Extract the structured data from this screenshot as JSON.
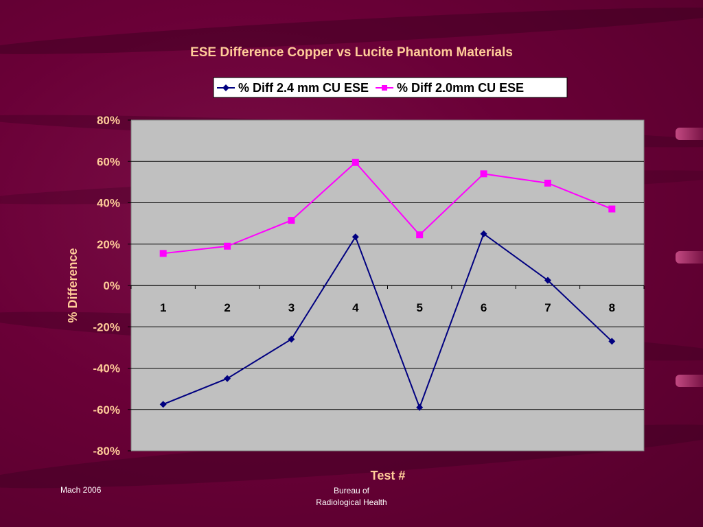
{
  "slide": {
    "footer_left": "Mach 2006",
    "footer_center_line1": "Bureau of",
    "footer_center_line2": "Radiological Health"
  },
  "colors": {
    "title": "#ffcc99",
    "axis_text": "#ffcc99",
    "plot_bg": "#c0c0c0",
    "series1": "#000080",
    "series2": "#ff00ff"
  },
  "chart_data": {
    "type": "line",
    "title": "ESE Difference Copper vs Lucite Phantom Materials",
    "xlabel": "Test #",
    "ylabel": "% Difference",
    "categories": [
      "1",
      "2",
      "3",
      "4",
      "5",
      "6",
      "7",
      "8"
    ],
    "ylim": [
      -80,
      80
    ],
    "yticks": [
      "80%",
      "60%",
      "40%",
      "20%",
      "0%",
      "-20%",
      "-40%",
      "-60%",
      "-80%"
    ],
    "grid": true,
    "legend_position": "top",
    "series": [
      {
        "name": "% Diff  2.4 mm CU ESE",
        "marker": "diamond",
        "color": "#000080",
        "values": [
          -57.5,
          -45,
          -26,
          23.5,
          -59,
          25,
          2.5,
          -27
        ]
      },
      {
        "name": "% Diff 2.0mm CU ESE",
        "marker": "square",
        "color": "#ff00ff",
        "values": [
          15.5,
          19,
          31.5,
          59.5,
          24.5,
          54,
          49.5,
          37
        ]
      }
    ]
  }
}
